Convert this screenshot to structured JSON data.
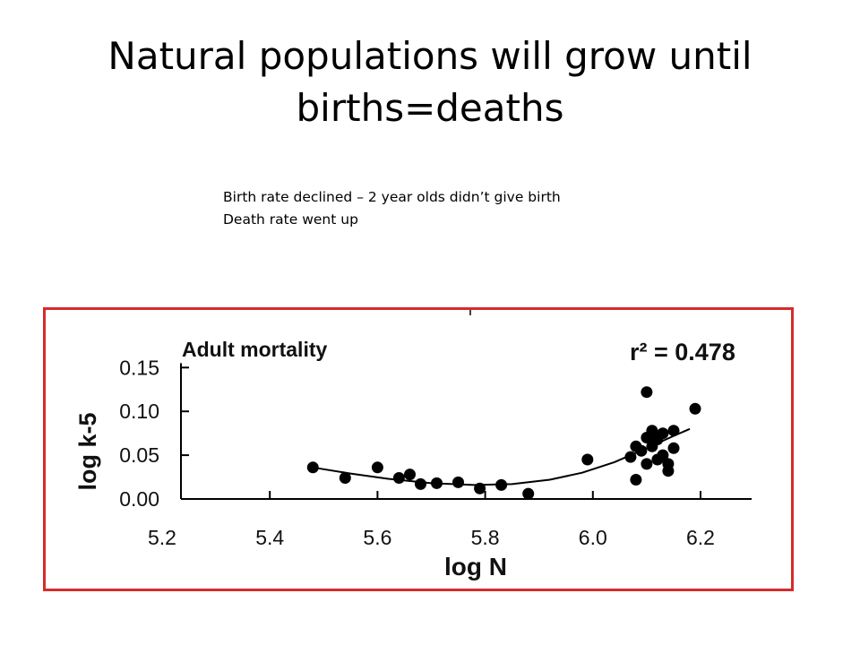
{
  "slide": {
    "title_line1": "Natural populations will grow until",
    "title_line2": "births=deaths",
    "notes": [
      "Birth rate declined – 2 year olds didn’t give birth",
      "Death rate went up"
    ]
  },
  "colors": {
    "frame": "#d52b2b",
    "marks": "#000000"
  },
  "chart_data": {
    "type": "scatter",
    "title": "Adult mortality",
    "annotation": "r² = 0.478",
    "xlabel": "log N",
    "ylabel": "log k-5",
    "xlim": [
      5.2,
      6.3
    ],
    "ylim": [
      0.0,
      0.15
    ],
    "x_ticks": [
      "5.2",
      "5.4",
      "5.6",
      "5.8",
      "6.0",
      "6.2"
    ],
    "y_ticks": [
      "0.00",
      "0.05",
      "0.10",
      "0.15"
    ],
    "grid": false,
    "points": [
      {
        "x": 5.48,
        "y": 0.036
      },
      {
        "x": 5.54,
        "y": 0.024
      },
      {
        "x": 5.6,
        "y": 0.036
      },
      {
        "x": 5.64,
        "y": 0.024
      },
      {
        "x": 5.66,
        "y": 0.028
      },
      {
        "x": 5.68,
        "y": 0.017
      },
      {
        "x": 5.71,
        "y": 0.018
      },
      {
        "x": 5.75,
        "y": 0.019
      },
      {
        "x": 5.79,
        "y": 0.012
      },
      {
        "x": 5.83,
        "y": 0.016
      },
      {
        "x": 5.88,
        "y": 0.006
      },
      {
        "x": 5.99,
        "y": 0.045
      },
      {
        "x": 6.07,
        "y": 0.048
      },
      {
        "x": 6.08,
        "y": 0.06
      },
      {
        "x": 6.08,
        "y": 0.022
      },
      {
        "x": 6.09,
        "y": 0.055
      },
      {
        "x": 6.1,
        "y": 0.07
      },
      {
        "x": 6.1,
        "y": 0.122
      },
      {
        "x": 6.1,
        "y": 0.04
      },
      {
        "x": 6.11,
        "y": 0.078
      },
      {
        "x": 6.11,
        "y": 0.06
      },
      {
        "x": 6.12,
        "y": 0.068
      },
      {
        "x": 6.12,
        "y": 0.045
      },
      {
        "x": 6.13,
        "y": 0.075
      },
      {
        "x": 6.13,
        "y": 0.05
      },
      {
        "x": 6.14,
        "y": 0.04
      },
      {
        "x": 6.14,
        "y": 0.032
      },
      {
        "x": 6.15,
        "y": 0.078
      },
      {
        "x": 6.15,
        "y": 0.058
      },
      {
        "x": 6.19,
        "y": 0.103
      }
    ],
    "fit_curve": [
      {
        "x": 5.48,
        "y": 0.036
      },
      {
        "x": 5.55,
        "y": 0.029
      },
      {
        "x": 5.62,
        "y": 0.023
      },
      {
        "x": 5.7,
        "y": 0.018
      },
      {
        "x": 5.78,
        "y": 0.016
      },
      {
        "x": 5.85,
        "y": 0.017
      },
      {
        "x": 5.92,
        "y": 0.022
      },
      {
        "x": 5.98,
        "y": 0.03
      },
      {
        "x": 6.04,
        "y": 0.042
      },
      {
        "x": 6.1,
        "y": 0.058
      },
      {
        "x": 6.15,
        "y": 0.072
      },
      {
        "x": 6.18,
        "y": 0.08
      }
    ]
  }
}
